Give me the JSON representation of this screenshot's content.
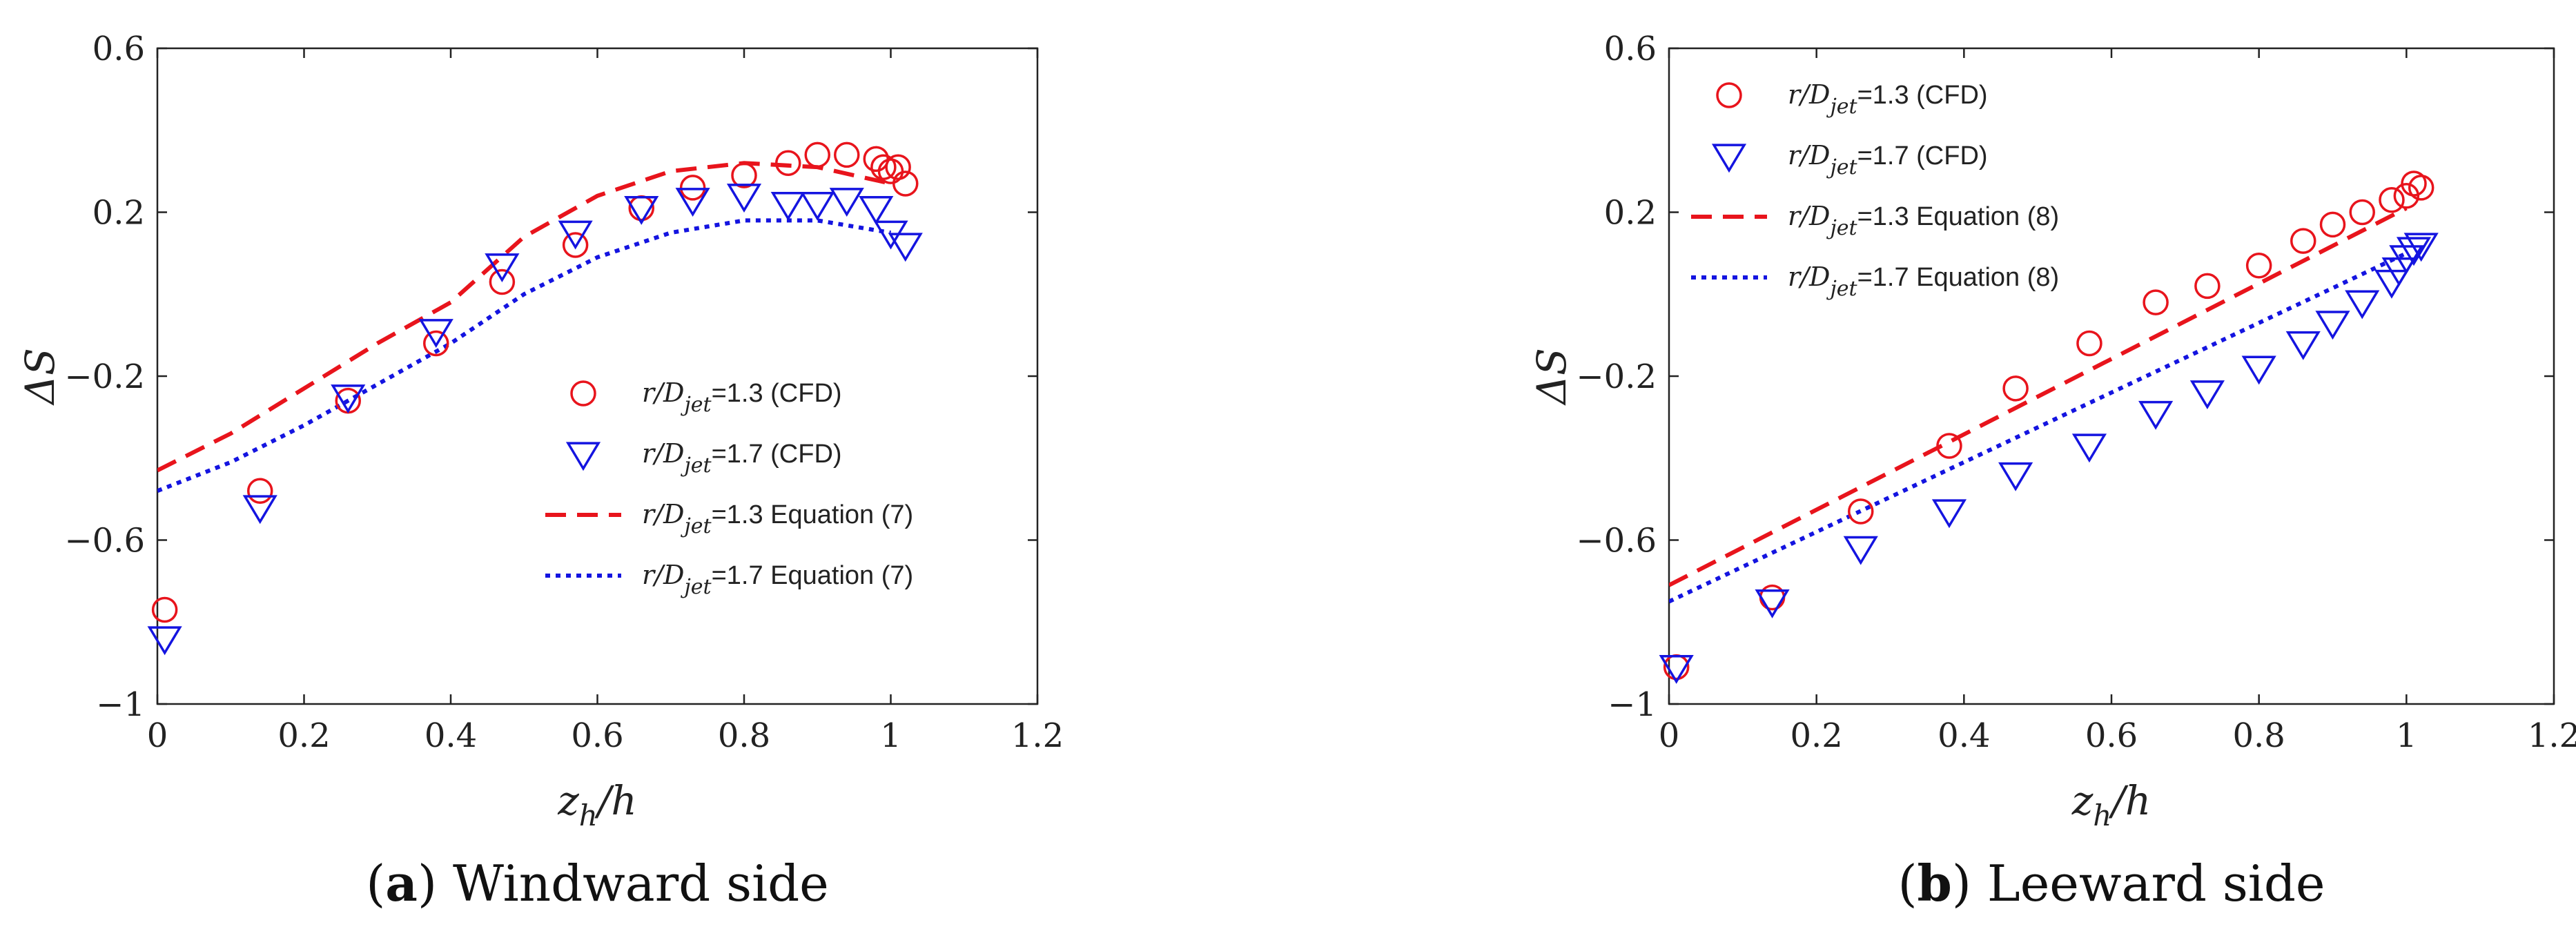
{
  "chart_data": [
    {
      "type": "scatter",
      "caption_letter": "a",
      "caption_text": "Windward side",
      "xlabel_main": "z",
      "xlabel_sub": "h",
      "xlabel_tail": "/h",
      "ylabel": "ΔS",
      "xlim": [
        0,
        1.2
      ],
      "ylim": [
        -1,
        0.6
      ],
      "xticks": [
        0,
        0.2,
        0.4,
        0.6,
        0.8,
        1,
        1.2
      ],
      "yticks": [
        -1,
        -0.6,
        -0.2,
        0.2,
        0.6
      ],
      "xtick_labels": [
        "0",
        "0.2",
        "0.4",
        "0.6",
        "0.8",
        "1",
        "1.2"
      ],
      "ytick_labels": [
        "−1",
        "−0.6",
        "−0.2",
        "0.2",
        "0.6"
      ],
      "legend_position": "lower-right",
      "series": [
        {
          "name": "r/Djet=1.3 (CFD)",
          "label_pre": "r/D",
          "label_sub": "jet",
          "label_post": "=1.3 (CFD)",
          "kind": "circle",
          "color": "#e8141c",
          "x": [
            0.01,
            0.14,
            0.26,
            0.38,
            0.47,
            0.57,
            0.66,
            0.73,
            0.8,
            0.86,
            0.9,
            0.94,
            0.98,
            0.99,
            1.0,
            1.01,
            1.02
          ],
          "y": [
            -0.77,
            -0.48,
            -0.26,
            -0.12,
            0.03,
            0.12,
            0.21,
            0.26,
            0.29,
            0.32,
            0.34,
            0.34,
            0.33,
            0.31,
            0.3,
            0.31,
            0.27
          ]
        },
        {
          "name": "r/Djet=1.7 (CFD)",
          "label_pre": "r/D",
          "label_sub": "jet",
          "label_post": "=1.7 (CFD)",
          "kind": "triangle",
          "color": "#1414e0",
          "x": [
            0.01,
            0.14,
            0.26,
            0.38,
            0.47,
            0.57,
            0.66,
            0.73,
            0.8,
            0.86,
            0.9,
            0.94,
            0.98,
            1.0,
            1.02
          ],
          "y": [
            -0.84,
            -0.52,
            -0.25,
            -0.09,
            0.07,
            0.15,
            0.21,
            0.23,
            0.24,
            0.22,
            0.22,
            0.23,
            0.21,
            0.15,
            0.12
          ]
        },
        {
          "name": "r/Djet=1.3 Equation (7)",
          "label_pre": "r/D",
          "label_sub": "jet",
          "label_post": "=1.3 Equation (7)",
          "kind": "dashed",
          "color": "#e8141c",
          "x": [
            0,
            0.1,
            0.2,
            0.3,
            0.4,
            0.5,
            0.6,
            0.7,
            0.8,
            0.9,
            1.0
          ],
          "y": [
            -0.43,
            -0.34,
            -0.23,
            -0.12,
            -0.02,
            0.14,
            0.24,
            0.3,
            0.32,
            0.31,
            0.27
          ]
        },
        {
          "name": "r/Djet=1.7 Equation (7)",
          "label_pre": "r/D",
          "label_sub": "jet",
          "label_post": "=1.7 Equation (7)",
          "kind": "dotted",
          "color": "#1414e0",
          "x": [
            0,
            0.1,
            0.2,
            0.3,
            0.4,
            0.5,
            0.6,
            0.7,
            0.8,
            0.9,
            1.0
          ],
          "y": [
            -0.48,
            -0.41,
            -0.32,
            -0.22,
            -0.12,
            0.0,
            0.09,
            0.15,
            0.18,
            0.18,
            0.15
          ]
        }
      ]
    },
    {
      "type": "scatter",
      "caption_letter": "b",
      "caption_text": "Leeward side",
      "xlabel_main": "z",
      "xlabel_sub": "h",
      "xlabel_tail": "/h",
      "ylabel": "ΔS",
      "xlim": [
        0,
        1.2
      ],
      "ylim": [
        -1,
        0.6
      ],
      "xticks": [
        0,
        0.2,
        0.4,
        0.6,
        0.8,
        1,
        1.2
      ],
      "yticks": [
        -1,
        -0.6,
        -0.2,
        0.2,
        0.6
      ],
      "xtick_labels": [
        "0",
        "0.2",
        "0.4",
        "0.6",
        "0.8",
        "1",
        "1.2"
      ],
      "ytick_labels": [
        "−1",
        "−0.6",
        "−0.2",
        "0.2",
        "0.6"
      ],
      "legend_position": "top-left",
      "series": [
        {
          "name": "r/Djet=1.3 (CFD)",
          "label_pre": "r/D",
          "label_sub": "jet",
          "label_post": "=1.3 (CFD)",
          "kind": "circle",
          "color": "#e8141c",
          "x": [
            0.01,
            0.14,
            0.26,
            0.38,
            0.47,
            0.57,
            0.66,
            0.73,
            0.8,
            0.86,
            0.9,
            0.94,
            0.98,
            1.0,
            1.01,
            1.02
          ],
          "y": [
            -0.91,
            -0.74,
            -0.53,
            -0.37,
            -0.23,
            -0.12,
            -0.02,
            0.02,
            0.07,
            0.13,
            0.17,
            0.2,
            0.23,
            0.24,
            0.27,
            0.26
          ]
        },
        {
          "name": "r/Djet=1.7 (CFD)",
          "label_pre": "r/D",
          "label_sub": "jet",
          "label_post": "=1.7 (CFD)",
          "kind": "triangle",
          "color": "#1414e0",
          "x": [
            0.01,
            0.14,
            0.26,
            0.38,
            0.47,
            0.57,
            0.66,
            0.73,
            0.8,
            0.86,
            0.9,
            0.94,
            0.98,
            0.99,
            1.0,
            1.01,
            1.02
          ],
          "y": [
            -0.91,
            -0.75,
            -0.62,
            -0.53,
            -0.44,
            -0.37,
            -0.29,
            -0.24,
            -0.18,
            -0.12,
            -0.07,
            -0.02,
            0.03,
            0.06,
            0.09,
            0.11,
            0.12
          ]
        },
        {
          "name": "r/Djet=1.3 Equation (8)",
          "label_pre": "r/D",
          "label_sub": "jet",
          "label_post": "=1.3 Equation (8)",
          "kind": "dashed",
          "color": "#e8141c",
          "x": [
            0,
            1.0
          ],
          "y": [
            -0.71,
            0.21
          ]
        },
        {
          "name": "r/Djet=1.7 Equation (8)",
          "label_pre": "r/D",
          "label_sub": "jet",
          "label_post": "=1.7 Equation (8)",
          "kind": "dotted",
          "color": "#1414e0",
          "x": [
            0,
            1.0
          ],
          "y": [
            -0.75,
            0.1
          ]
        }
      ]
    }
  ]
}
